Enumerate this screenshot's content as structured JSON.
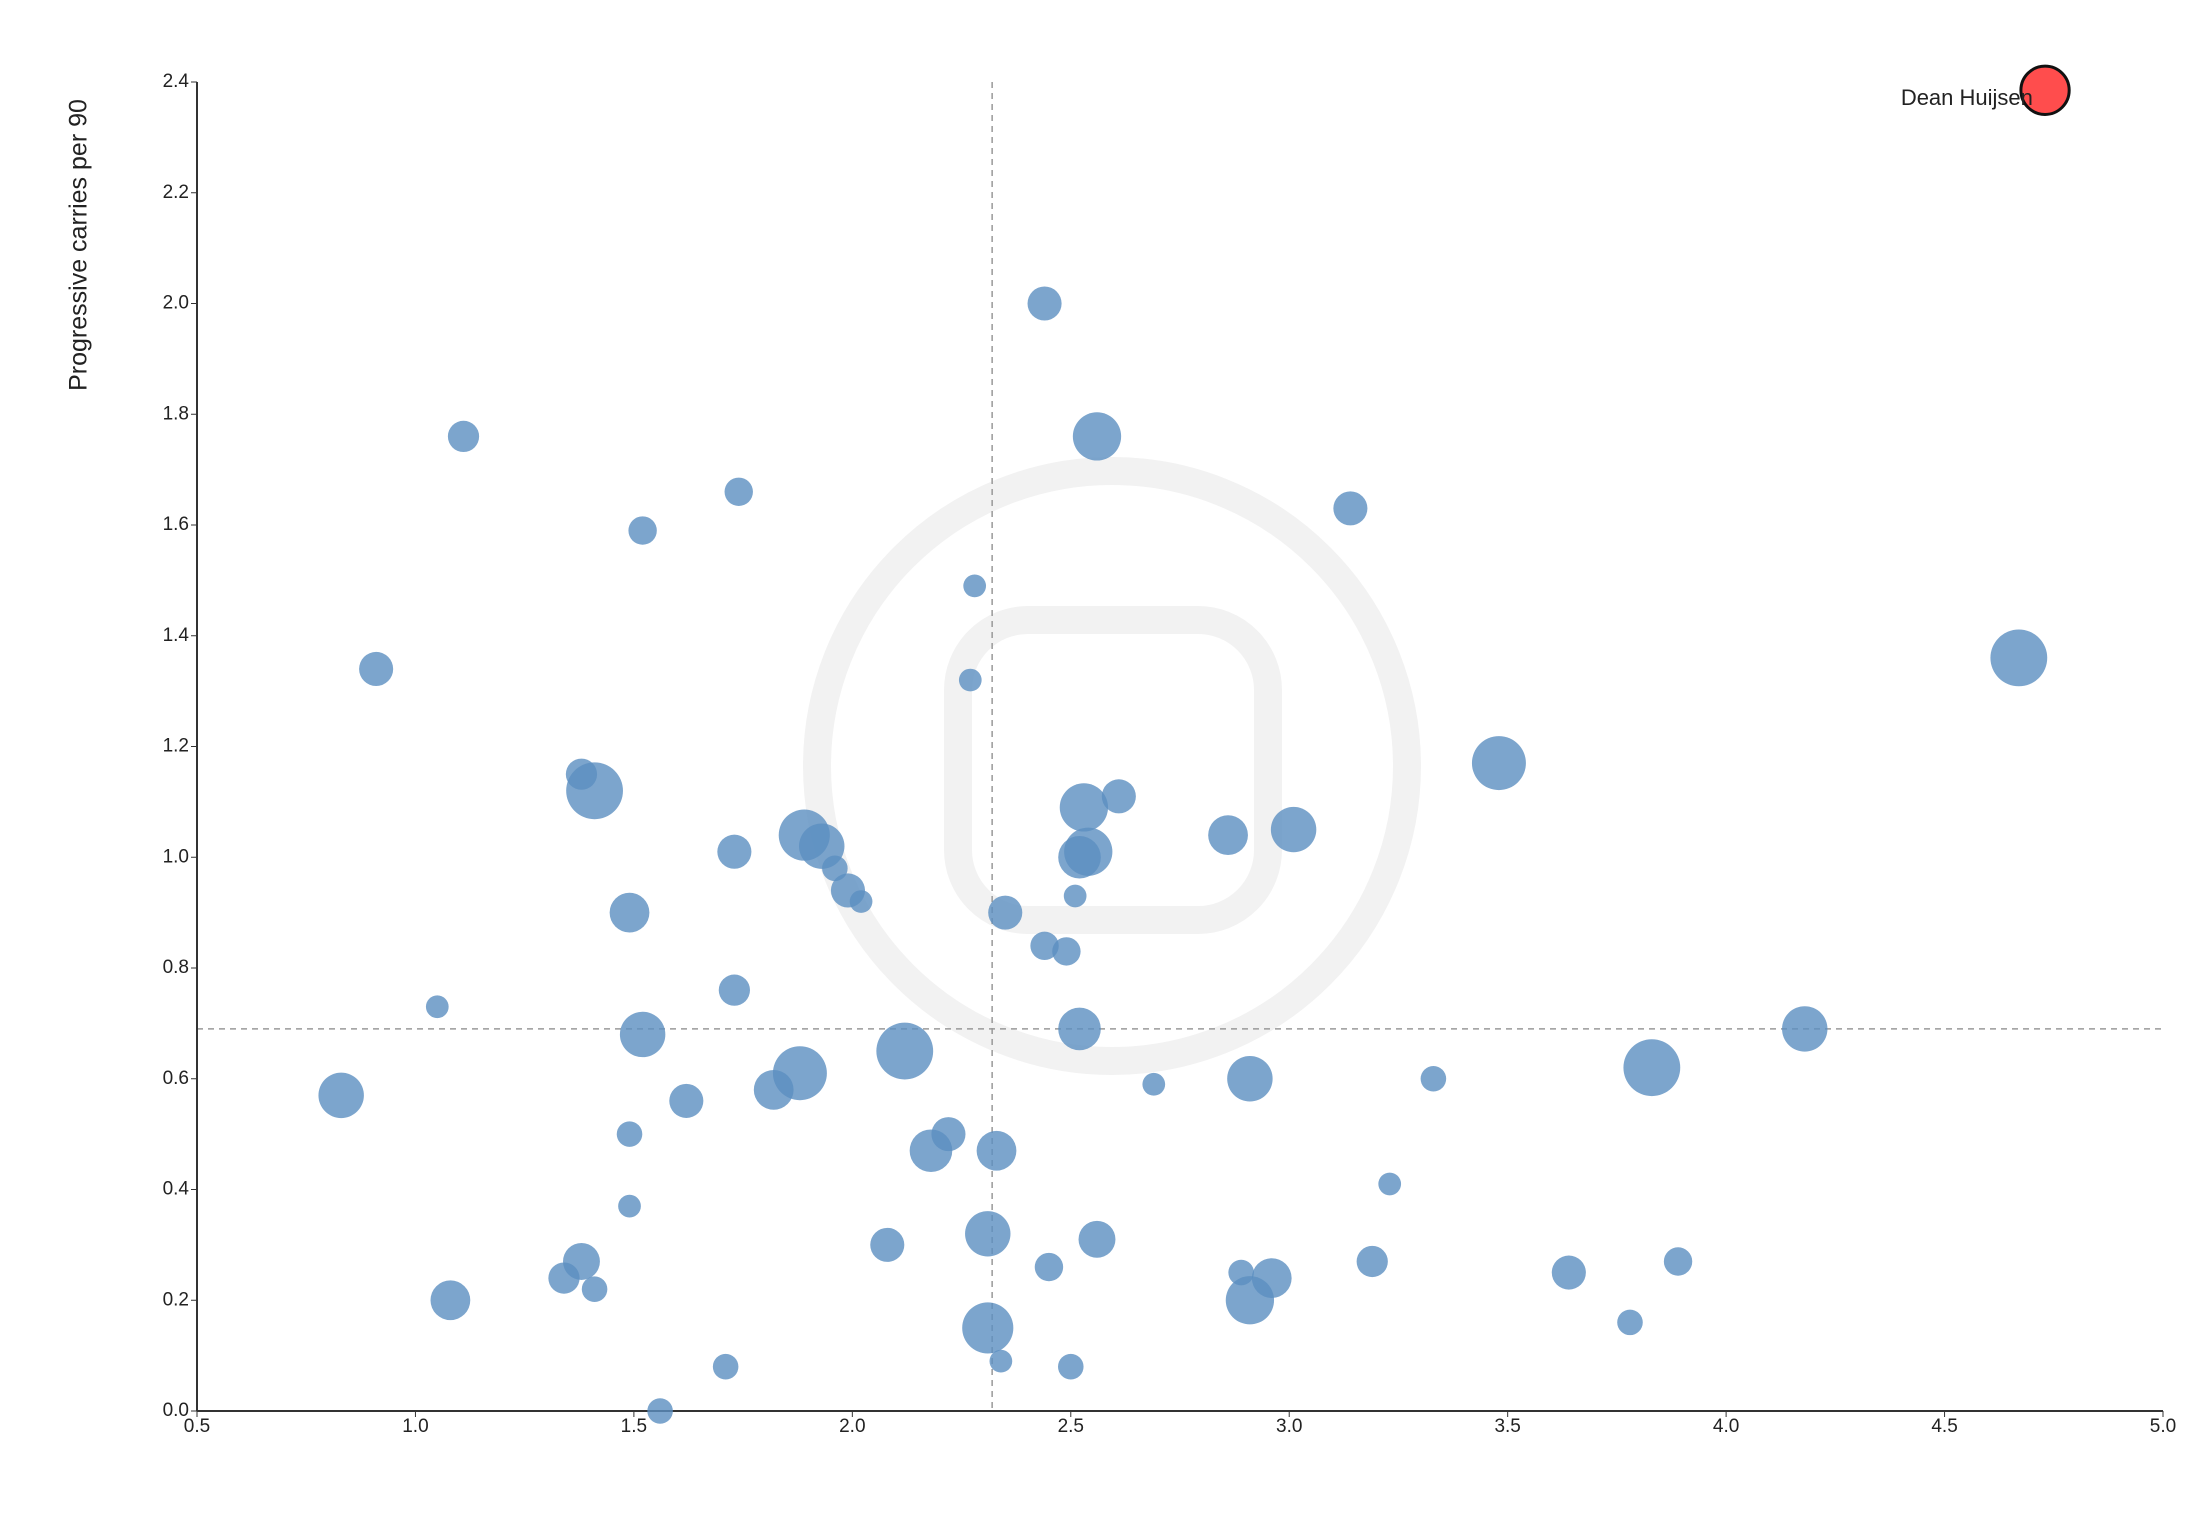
{
  "chart_data": {
    "type": "scatter",
    "ylabel": "Progressive carries per 90",
    "xlim": [
      0.5,
      5.0
    ],
    "ylim": [
      0.0,
      2.4
    ],
    "xticks": [
      0.5,
      {
        "value": 1,
        "label": "1.0"
      },
      1.5,
      {
        "value": 2,
        "label": "2.0"
      },
      2.5,
      {
        "value": 3,
        "label": "3.0"
      },
      3.5,
      {
        "value": 4,
        "label": "4.0"
      },
      4.5,
      {
        "value": 5,
        "label": "5.0"
      }
    ],
    "yticks": [
      {
        "value": 0,
        "label": "0.0"
      },
      0.2,
      0.4,
      0.6,
      0.8,
      {
        "value": 1,
        "label": "1.0"
      },
      1.2,
      1.4,
      1.6,
      1.8,
      {
        "value": 2,
        "label": "2.0"
      },
      2.2,
      2.4
    ],
    "reference_lines": {
      "x": 2.32,
      "y": 0.69
    },
    "color": "#5b8fc0",
    "x": [
      2.44,
      2.56,
      1.11,
      1.74,
      1.52,
      3.14,
      2.28,
      0.91,
      2.27,
      4.67,
      3.48,
      1.38,
      1.41,
      1.89,
      1.93,
      1.96,
      1.99,
      2.02,
      1.73,
      1.49,
      2.53,
      2.61,
      2.54,
      2.52,
      2.86,
      3.01,
      2.35,
      2.51,
      2.44,
      2.49,
      1.73,
      1.05,
      1.52,
      2.52,
      4.18,
      2.12,
      0.83,
      1.88,
      1.82,
      1.62,
      2.91,
      2.69,
      3.83,
      3.33,
      1.49,
      2.22,
      2.18,
      2.33,
      3.23,
      1.49,
      2.08,
      2.31,
      2.56,
      1.38,
      1.34,
      1.41,
      1.08,
      2.45,
      2.89,
      2.96,
      2.91,
      3.19,
      3.64,
      3.89,
      3.78,
      2.31,
      2.34,
      2.5,
      1.71,
      1.56
    ],
    "y": [
      2.0,
      1.76,
      1.76,
      1.66,
      1.59,
      1.63,
      1.49,
      1.34,
      1.32,
      1.36,
      1.17,
      1.15,
      1.12,
      1.04,
      1.02,
      0.98,
      0.94,
      0.92,
      1.01,
      0.9,
      1.09,
      1.11,
      1.01,
      1.0,
      1.04,
      1.05,
      0.9,
      0.93,
      0.84,
      0.83,
      0.76,
      0.73,
      0.68,
      0.69,
      0.69,
      0.65,
      0.57,
      0.61,
      0.58,
      0.56,
      0.6,
      0.59,
      0.62,
      0.6,
      0.5,
      0.5,
      0.47,
      0.47,
      0.41,
      0.37,
      0.3,
      0.32,
      0.31,
      0.27,
      0.24,
      0.22,
      0.2,
      0.26,
      0.25,
      0.24,
      0.2,
      0.27,
      0.25,
      0.27,
      0.16,
      0.15,
      0.09,
      0.08,
      0.08,
      0.0
    ],
    "sizes": [
      12,
      17,
      11,
      10,
      10,
      12,
      8,
      12,
      8,
      20,
      19,
      11,
      20,
      18,
      16,
      9,
      12,
      8,
      12,
      14,
      17,
      12,
      17,
      15,
      14,
      16,
      12,
      8,
      10,
      10,
      11,
      8,
      16,
      15,
      16,
      20,
      16,
      19,
      14,
      12,
      16,
      8,
      20,
      9,
      9,
      12,
      15,
      14,
      8,
      8,
      12,
      16,
      13,
      13,
      11,
      9,
      14,
      10,
      9,
      14,
      17,
      11,
      12,
      10,
      9,
      18,
      8,
      9,
      9,
      9
    ],
    "highlight": {
      "label": "Dean Huijsen",
      "x": 4.73,
      "y": 2.385,
      "size": 17,
      "color": "#ff4d4d"
    }
  }
}
